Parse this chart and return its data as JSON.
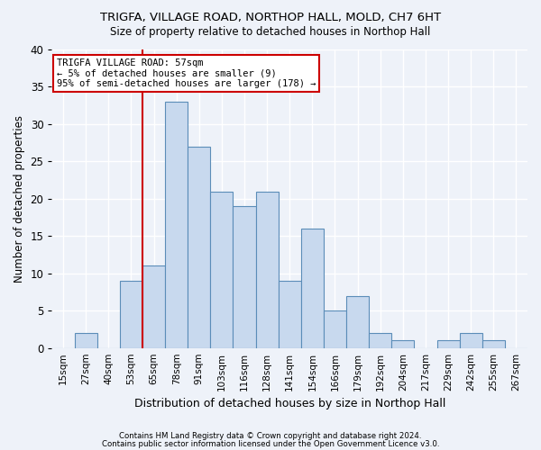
{
  "title": "TRIGFA, VILLAGE ROAD, NORTHOP HALL, MOLD, CH7 6HT",
  "subtitle": "Size of property relative to detached houses in Northop Hall",
  "xlabel": "Distribution of detached houses by size in Northop Hall",
  "ylabel": "Number of detached properties",
  "categories": [
    "15sqm",
    "27sqm",
    "40sqm",
    "53sqm",
    "65sqm",
    "78sqm",
    "91sqm",
    "103sqm",
    "116sqm",
    "128sqm",
    "141sqm",
    "154sqm",
    "166sqm",
    "179sqm",
    "192sqm",
    "204sqm",
    "217sqm",
    "229sqm",
    "242sqm",
    "255sqm",
    "267sqm"
  ],
  "values": [
    0,
    2,
    0,
    9,
    11,
    33,
    27,
    21,
    19,
    21,
    9,
    16,
    5,
    7,
    2,
    1,
    0,
    1,
    2,
    1,
    0
  ],
  "bar_color": "#c8d9ee",
  "bar_edge_color": "#5b8db8",
  "background_color": "#eef2f9",
  "grid_color": "#ffffff",
  "red_line_index": 4,
  "annotation_line1": "TRIGFA VILLAGE ROAD: 57sqm",
  "annotation_line2": "← 5% of detached houses are smaller (9)",
  "annotation_line3": "95% of semi-detached houses are larger (178) →",
  "annotation_box_color": "#ffffff",
  "annotation_box_edge": "#cc0000",
  "red_line_color": "#cc0000",
  "ylim": [
    0,
    40
  ],
  "yticks": [
    0,
    5,
    10,
    15,
    20,
    25,
    30,
    35,
    40
  ],
  "footer1": "Contains HM Land Registry data © Crown copyright and database right 2024.",
  "footer2": "Contains public sector information licensed under the Open Government Licence v3.0."
}
